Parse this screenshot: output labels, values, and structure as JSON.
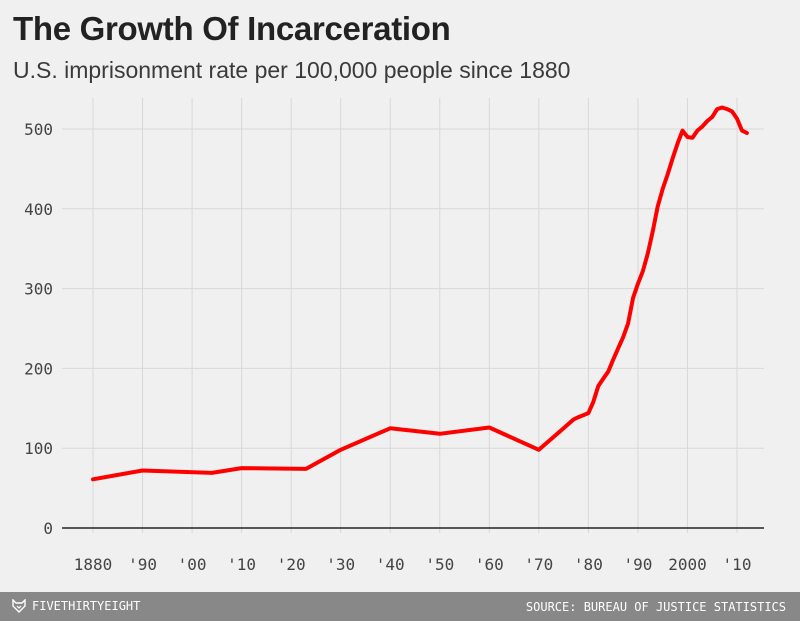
{
  "header": {
    "title": "The Growth Of Incarceration",
    "subtitle": "U.S. imprisonment rate per 100,000 people since 1880"
  },
  "footer": {
    "brand": "FIVETHIRTYEIGHT",
    "source": "SOURCE: BUREAU OF JUSTICE STATISTICS",
    "logo_icon": "fox-icon"
  },
  "colors": {
    "line": "#ff0000",
    "grid": "#d8d8d8",
    "background": "#f0f0f0",
    "footer": "#888888"
  },
  "chart_data": {
    "type": "line",
    "title": "The Growth Of Incarceration",
    "subtitle": "U.S. imprisonment rate per 100,000 people since 1880",
    "xlabel": "",
    "ylabel": "",
    "xlim": [
      1880,
      2010
    ],
    "ylim": [
      0,
      500
    ],
    "grid": true,
    "legend": "none",
    "x_ticks": [
      {
        "value": 1880,
        "label": "1880"
      },
      {
        "value": 1890,
        "label": "'90"
      },
      {
        "value": 1900,
        "label": "'00"
      },
      {
        "value": 1910,
        "label": "'10"
      },
      {
        "value": 1920,
        "label": "'20"
      },
      {
        "value": 1930,
        "label": "'30"
      },
      {
        "value": 1940,
        "label": "'40"
      },
      {
        "value": 1950,
        "label": "'50"
      },
      {
        "value": 1960,
        "label": "'60"
      },
      {
        "value": 1970,
        "label": "'70"
      },
      {
        "value": 1980,
        "label": "'80"
      },
      {
        "value": 1990,
        "label": "'90"
      },
      {
        "value": 2000,
        "label": "2000"
      },
      {
        "value": 2010,
        "label": "'10"
      }
    ],
    "y_ticks": [
      0,
      100,
      200,
      300,
      400,
      500
    ],
    "series": [
      {
        "x": [
          1880,
          1890,
          1904,
          1910,
          1923,
          1930,
          1940,
          1950,
          1960,
          1970,
          1975,
          1977,
          1978,
          1980,
          1981,
          1982,
          1983,
          1984,
          1985,
          1986,
          1987,
          1988,
          1989,
          1990,
          1991,
          1992,
          1993,
          1994,
          1995,
          1996,
          1997,
          1998,
          1999,
          2000,
          2001,
          2002,
          2003,
          2004,
          2005,
          2006,
          2007,
          2008,
          2009,
          2010,
          2011,
          2012
        ],
        "values": [
          61,
          72,
          69,
          75,
          74,
          98,
          125,
          118,
          126,
          98,
          125,
          136,
          139,
          144,
          158,
          178,
          187,
          196,
          211,
          225,
          239,
          256,
          288,
          306,
          322,
          344,
          372,
          403,
          425,
          443,
          463,
          482,
          498,
          490,
          489,
          498,
          503,
          510,
          515,
          525,
          527,
          525,
          522,
          513,
          498,
          495
        ]
      }
    ]
  }
}
